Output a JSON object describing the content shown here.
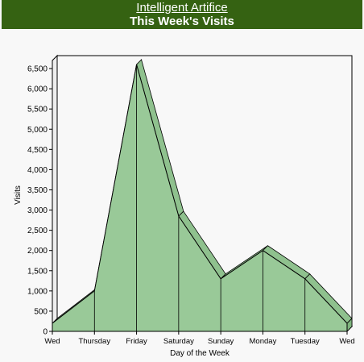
{
  "header": {
    "site_link": "Intelligent Artifice",
    "chart_title": "This Week's Visits"
  },
  "colors": {
    "header_bg": "#356212",
    "area_fill": "#99c998",
    "area_stroke": "#000000",
    "grid": "#888888"
  },
  "chart_data": {
    "type": "area",
    "title": "This Week's Visits",
    "xlabel": "Day of the Week",
    "ylabel": "Visits",
    "categories": [
      "Wed",
      "Thursday",
      "Friday",
      "Saturday",
      "Sunday",
      "Monday",
      "Tuesday",
      "Wed"
    ],
    "values": [
      200,
      1000,
      6600,
      2850,
      1300,
      2000,
      1300,
      200
    ],
    "ylim": [
      0,
      6700
    ],
    "yticks": [
      0,
      500,
      1000,
      1500,
      2000,
      2500,
      3000,
      3500,
      4000,
      4500,
      5000,
      5500,
      6000,
      6500
    ],
    "ytick_labels": [
      "0",
      "500",
      "1,000",
      "1,500",
      "2,000",
      "2,500",
      "3,000",
      "3,500",
      "4,000",
      "4,500",
      "5,000",
      "5,500",
      "6,000",
      "6,500"
    ],
    "grid": true,
    "style": "3d"
  }
}
